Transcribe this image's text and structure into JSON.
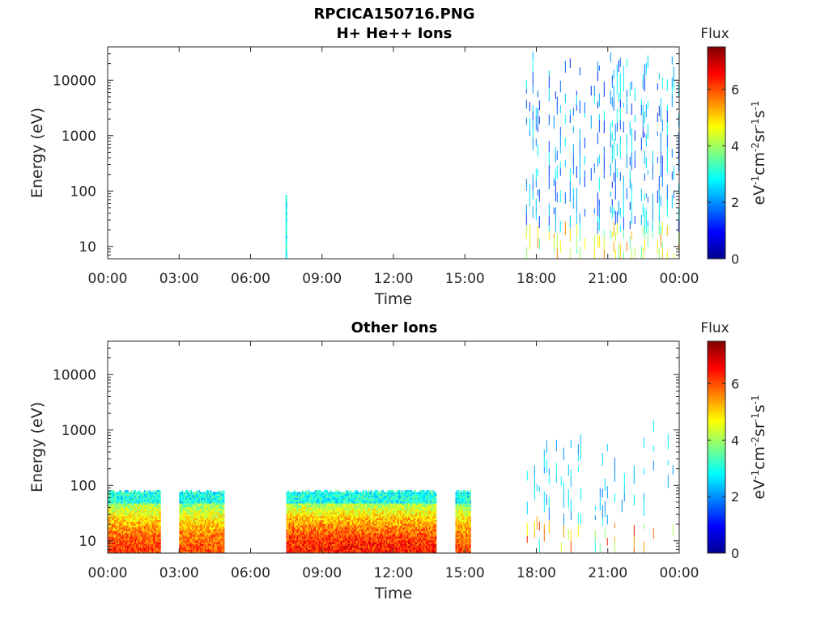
{
  "figure_title": "RPCICA150716.PNG",
  "chart_data": [
    {
      "type": "heatmap",
      "title": "H+ He++ Ions",
      "xlabel": "Time",
      "ylabel": "Energy (eV)",
      "x_ticks": [
        "00:00",
        "03:00",
        "06:00",
        "09:00",
        "12:00",
        "15:00",
        "18:00",
        "21:00",
        "00:00"
      ],
      "x_range_hours": [
        0,
        24
      ],
      "y_scale": "log",
      "y_ticks": [
        10,
        100,
        1000,
        10000
      ],
      "y_tick_labels": [
        "10",
        "100",
        "1000",
        "10000"
      ],
      "ylim": [
        6,
        40000
      ],
      "colorbar": {
        "label": "Flux",
        "units_label": "eV-1cm-2sr-1s-1",
        "range": [
          0,
          7.5
        ],
        "ticks": [
          0,
          2,
          4,
          6
        ],
        "tick_labels": [
          "0",
          "2",
          "4",
          "6"
        ],
        "colormap": "jet"
      },
      "features": [
        {
          "time_start": 7.45,
          "time_end": 7.6,
          "energy_min": 6,
          "energy_max": 80,
          "flux": 2.8,
          "pattern": "brief spike"
        },
        {
          "time_start": 17.5,
          "time_end": 24.0,
          "energy_min": 6,
          "energy_max": 30000,
          "flux": 2.0,
          "pattern": "intermittent vertical streaks"
        }
      ]
    },
    {
      "type": "heatmap",
      "title": "Other Ions",
      "xlabel": "Time",
      "ylabel": "Energy (eV)",
      "x_ticks": [
        "00:00",
        "03:00",
        "06:00",
        "09:00",
        "12:00",
        "15:00",
        "18:00",
        "21:00",
        "00:00"
      ],
      "x_range_hours": [
        0,
        24
      ],
      "y_scale": "log",
      "y_ticks": [
        10,
        100,
        1000,
        10000
      ],
      "y_tick_labels": [
        "10",
        "100",
        "1000",
        "10000"
      ],
      "ylim": [
        6,
        40000
      ],
      "colorbar": {
        "label": "Flux",
        "units_label": "eV-1cm-2sr-1s-1",
        "range": [
          0,
          7.5
        ],
        "ticks": [
          0,
          2,
          4,
          6
        ],
        "tick_labels": [
          "0",
          "2",
          "4",
          "6"
        ],
        "colormap": "jet"
      },
      "features": [
        {
          "time_start": 0.0,
          "time_end": 2.2,
          "energy_min": 6,
          "energy_max": 80,
          "flux": 6.2,
          "pattern": "dense band"
        },
        {
          "time_start": 3.0,
          "time_end": 4.9,
          "energy_min": 6,
          "energy_max": 80,
          "flux": 6.0,
          "pattern": "dense band"
        },
        {
          "time_start": 7.5,
          "time_end": 13.8,
          "energy_min": 6,
          "energy_max": 80,
          "flux": 6.4,
          "pattern": "dense band"
        },
        {
          "time_start": 14.6,
          "time_end": 15.2,
          "energy_min": 6,
          "energy_max": 80,
          "flux": 6.0,
          "pattern": "dense band"
        },
        {
          "time_start": 17.5,
          "time_end": 24.0,
          "energy_min": 6,
          "energy_max": 1500,
          "flux": 3.0,
          "pattern": "sparse streaks"
        }
      ]
    }
  ]
}
